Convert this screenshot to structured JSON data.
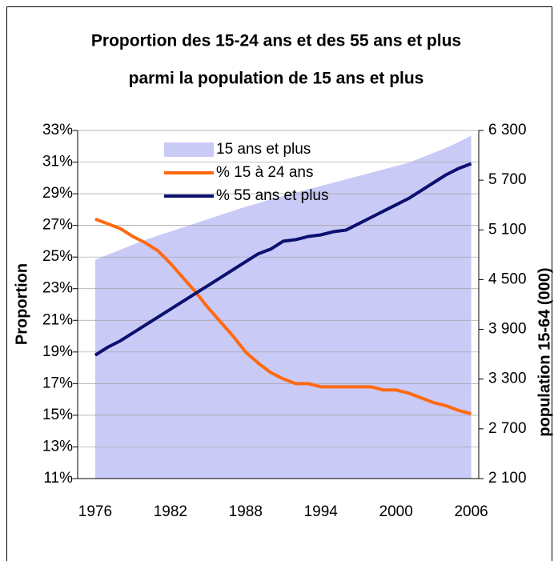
{
  "chart_data": {
    "type": "line",
    "title": [
      "Proportion des 15-24 ans et des 55 ans et plus",
      "parmi la population de 15 ans et plus"
    ],
    "ylabel": "Proportion",
    "y2label": "population 15-64 (000)",
    "x": [
      1976,
      1977,
      1978,
      1979,
      1980,
      1981,
      1982,
      1983,
      1984,
      1985,
      1986,
      1987,
      1988,
      1989,
      1990,
      1991,
      1992,
      1993,
      1994,
      1995,
      1996,
      1997,
      1998,
      1999,
      2000,
      2001,
      2002,
      2003,
      2004,
      2005,
      2006
    ],
    "xlim": [
      1974.6,
      2006.6
    ],
    "xticks": [
      1976,
      1982,
      1988,
      1994,
      2000,
      2006
    ],
    "ylim": [
      11,
      33
    ],
    "yticks": [
      {
        "value": 11,
        "label": "11%"
      },
      {
        "value": 13,
        "label": "13%"
      },
      {
        "value": 15,
        "label": "15%"
      },
      {
        "value": 17,
        "label": "17%"
      },
      {
        "value": 19,
        "label": "19%"
      },
      {
        "value": 21,
        "label": "21%"
      },
      {
        "value": 23,
        "label": "23%"
      },
      {
        "value": 25,
        "label": "25%"
      },
      {
        "value": 27,
        "label": "27%"
      },
      {
        "value": 29,
        "label": "29%"
      },
      {
        "value": 31,
        "label": "31%"
      },
      {
        "value": 33,
        "label": "33%"
      }
    ],
    "y2lim": [
      2100,
      6300
    ],
    "y2ticks": [
      {
        "value": 2100,
        "label": "2 100"
      },
      {
        "value": 2700,
        "label": "2 700"
      },
      {
        "value": 3300,
        "label": "3 300"
      },
      {
        "value": 3900,
        "label": "3 900"
      },
      {
        "value": 4500,
        "label": "4 500"
      },
      {
        "value": 5100,
        "label": "5 100"
      },
      {
        "value": 5700,
        "label": "5 700"
      },
      {
        "value": 6300,
        "label": "6 300"
      }
    ],
    "grid": true,
    "legend": "upper-left",
    "series": [
      {
        "name": "15 ans et plus",
        "type": "area",
        "axis": "y2",
        "color": "#cacaf7",
        "values": [
          4740,
          4800,
          4860,
          4920,
          4980,
          5030,
          5080,
          5130,
          5180,
          5230,
          5280,
          5330,
          5380,
          5420,
          5470,
          5510,
          5550,
          5590,
          5630,
          5670,
          5710,
          5750,
          5790,
          5830,
          5870,
          5910,
          5970,
          6030,
          6090,
          6160,
          6240
        ]
      },
      {
        "name": "% 15 à 24 ans",
        "type": "line",
        "color": "#ff6a10",
        "values": [
          27.4,
          27.1,
          26.8,
          26.3,
          25.9,
          25.4,
          24.6,
          23.7,
          22.8,
          21.8,
          20.9,
          20.0,
          19.0,
          18.3,
          17.7,
          17.3,
          17.0,
          17.0,
          16.8,
          16.8,
          16.8,
          16.8,
          16.8,
          16.6,
          16.6,
          16.4,
          16.1,
          15.8,
          15.6,
          15.3,
          15.1
        ]
      },
      {
        "name": "% 55 ans et plus",
        "type": "line",
        "color": "#0b1070",
        "values": [
          18.8,
          19.3,
          19.7,
          20.2,
          20.7,
          21.2,
          21.7,
          22.2,
          22.7,
          23.2,
          23.7,
          24.2,
          24.7,
          25.2,
          25.5,
          26.0,
          26.1,
          26.3,
          26.4,
          26.6,
          26.7,
          27.1,
          27.5,
          27.9,
          28.3,
          28.7,
          29.2,
          29.7,
          30.2,
          30.6,
          30.9
        ]
      }
    ]
  }
}
